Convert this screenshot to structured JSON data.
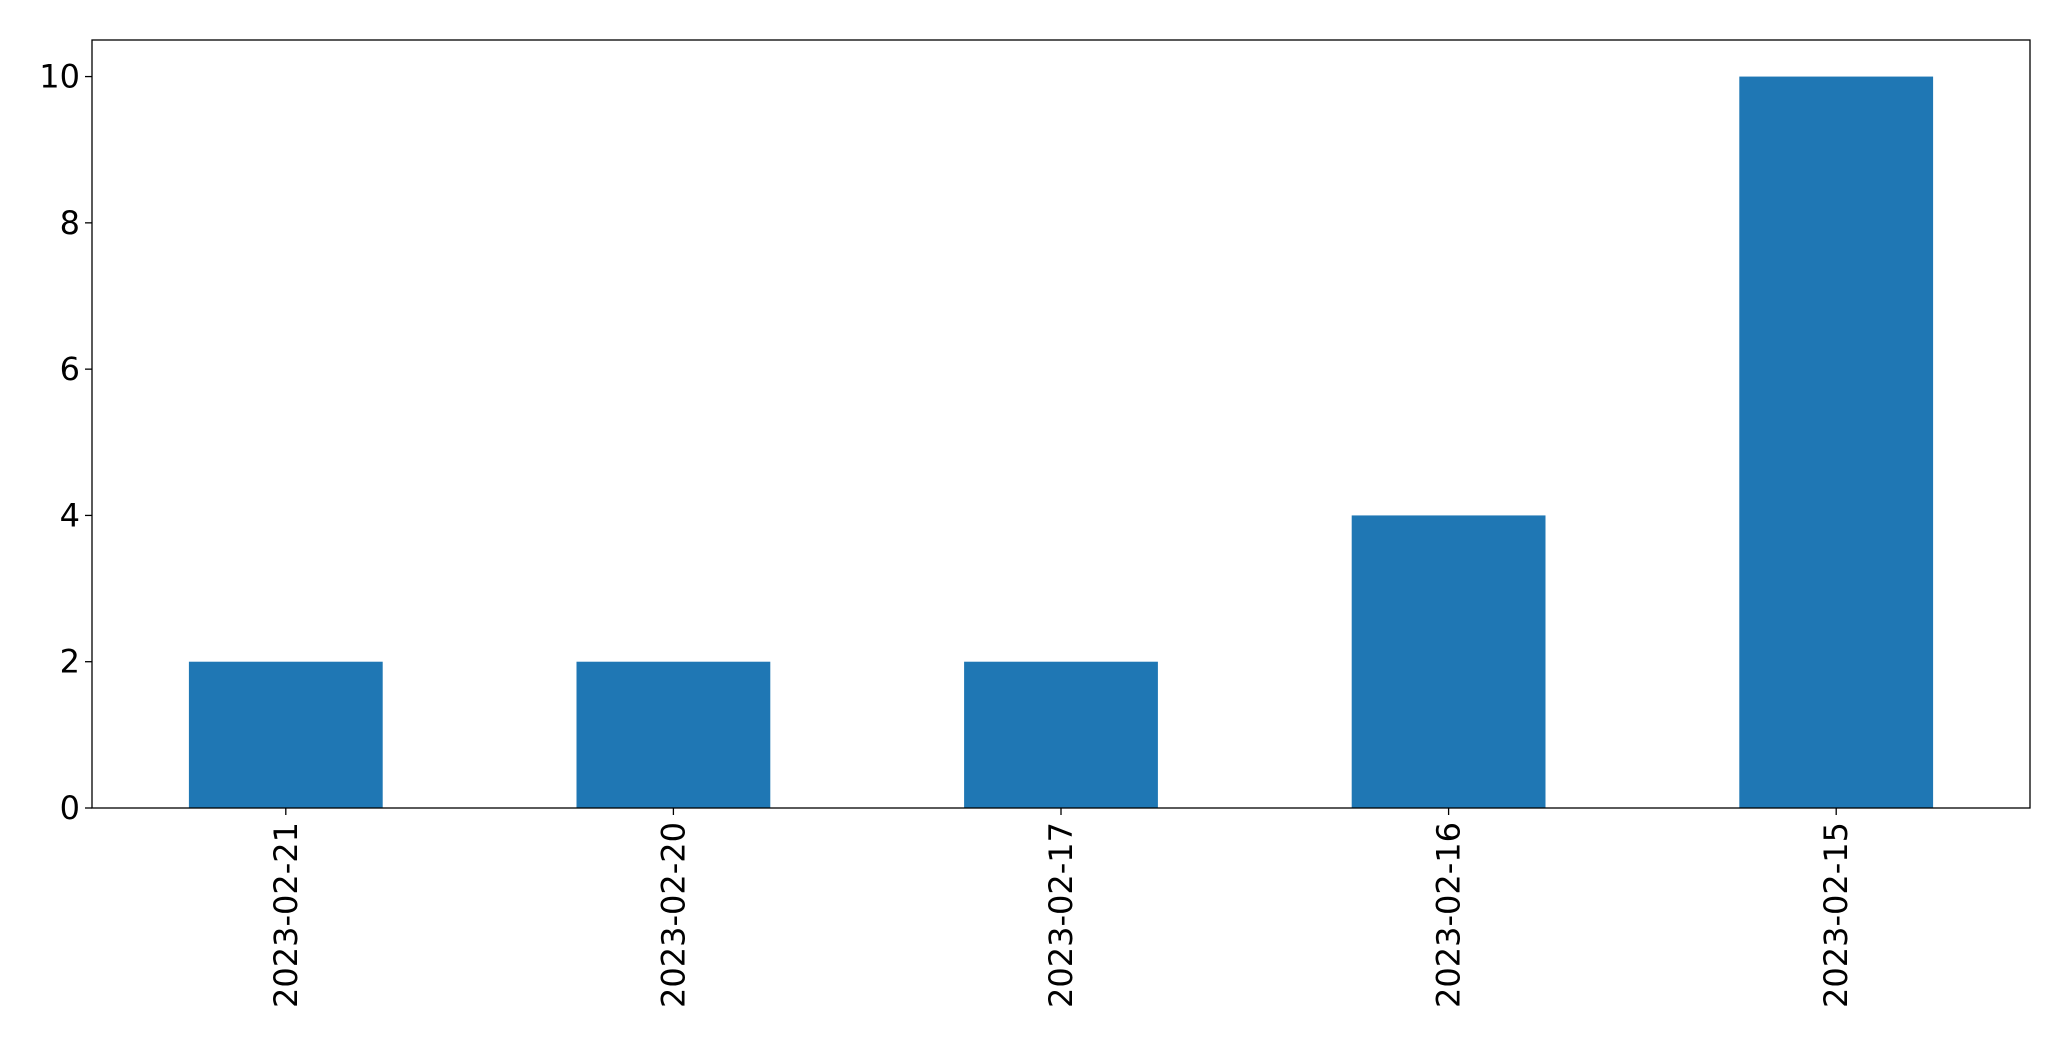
{
  "chart_data": {
    "type": "bar",
    "categories": [
      "2023-02-21",
      "2023-02-20",
      "2023-02-17",
      "2023-02-16",
      "2023-02-15"
    ],
    "values": [
      2,
      2,
      2,
      4,
      10
    ],
    "color": "#1f77b4",
    "ylim": [
      0,
      10.5
    ],
    "yticks": [
      0,
      2,
      4,
      6,
      8,
      10
    ],
    "grid": false
  }
}
